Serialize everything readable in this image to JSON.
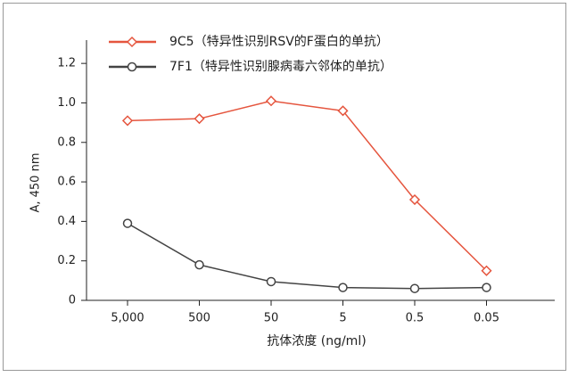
{
  "chart_data": {
    "type": "line",
    "categories": [
      "5,000",
      "500",
      "50",
      "5",
      "0.5",
      "0.05"
    ],
    "x_label": "抗体浓度 (ng/ml)",
    "y_label": "A, 450 nm",
    "series": [
      {
        "name": "9C5（特异性识别RSV的F蛋白的单抗）",
        "color": "#e5553e",
        "marker": "diamond",
        "values": [
          0.91,
          0.92,
          1.01,
          0.96,
          0.51,
          0.15
        ]
      },
      {
        "name": "7F1（特异性识别腺病毒六邻体的单抗）",
        "color": "#444444",
        "marker": "circle",
        "values": [
          0.39,
          0.18,
          0.095,
          0.065,
          0.06,
          0.065
        ]
      }
    ],
    "ylim": [
      0,
      1.3
    ],
    "yticks": [
      0,
      0.2,
      0.4,
      0.6,
      0.8,
      {
        "value": 1,
        "label": "1.0"
      },
      1.2
    ],
    "grid": false
  }
}
